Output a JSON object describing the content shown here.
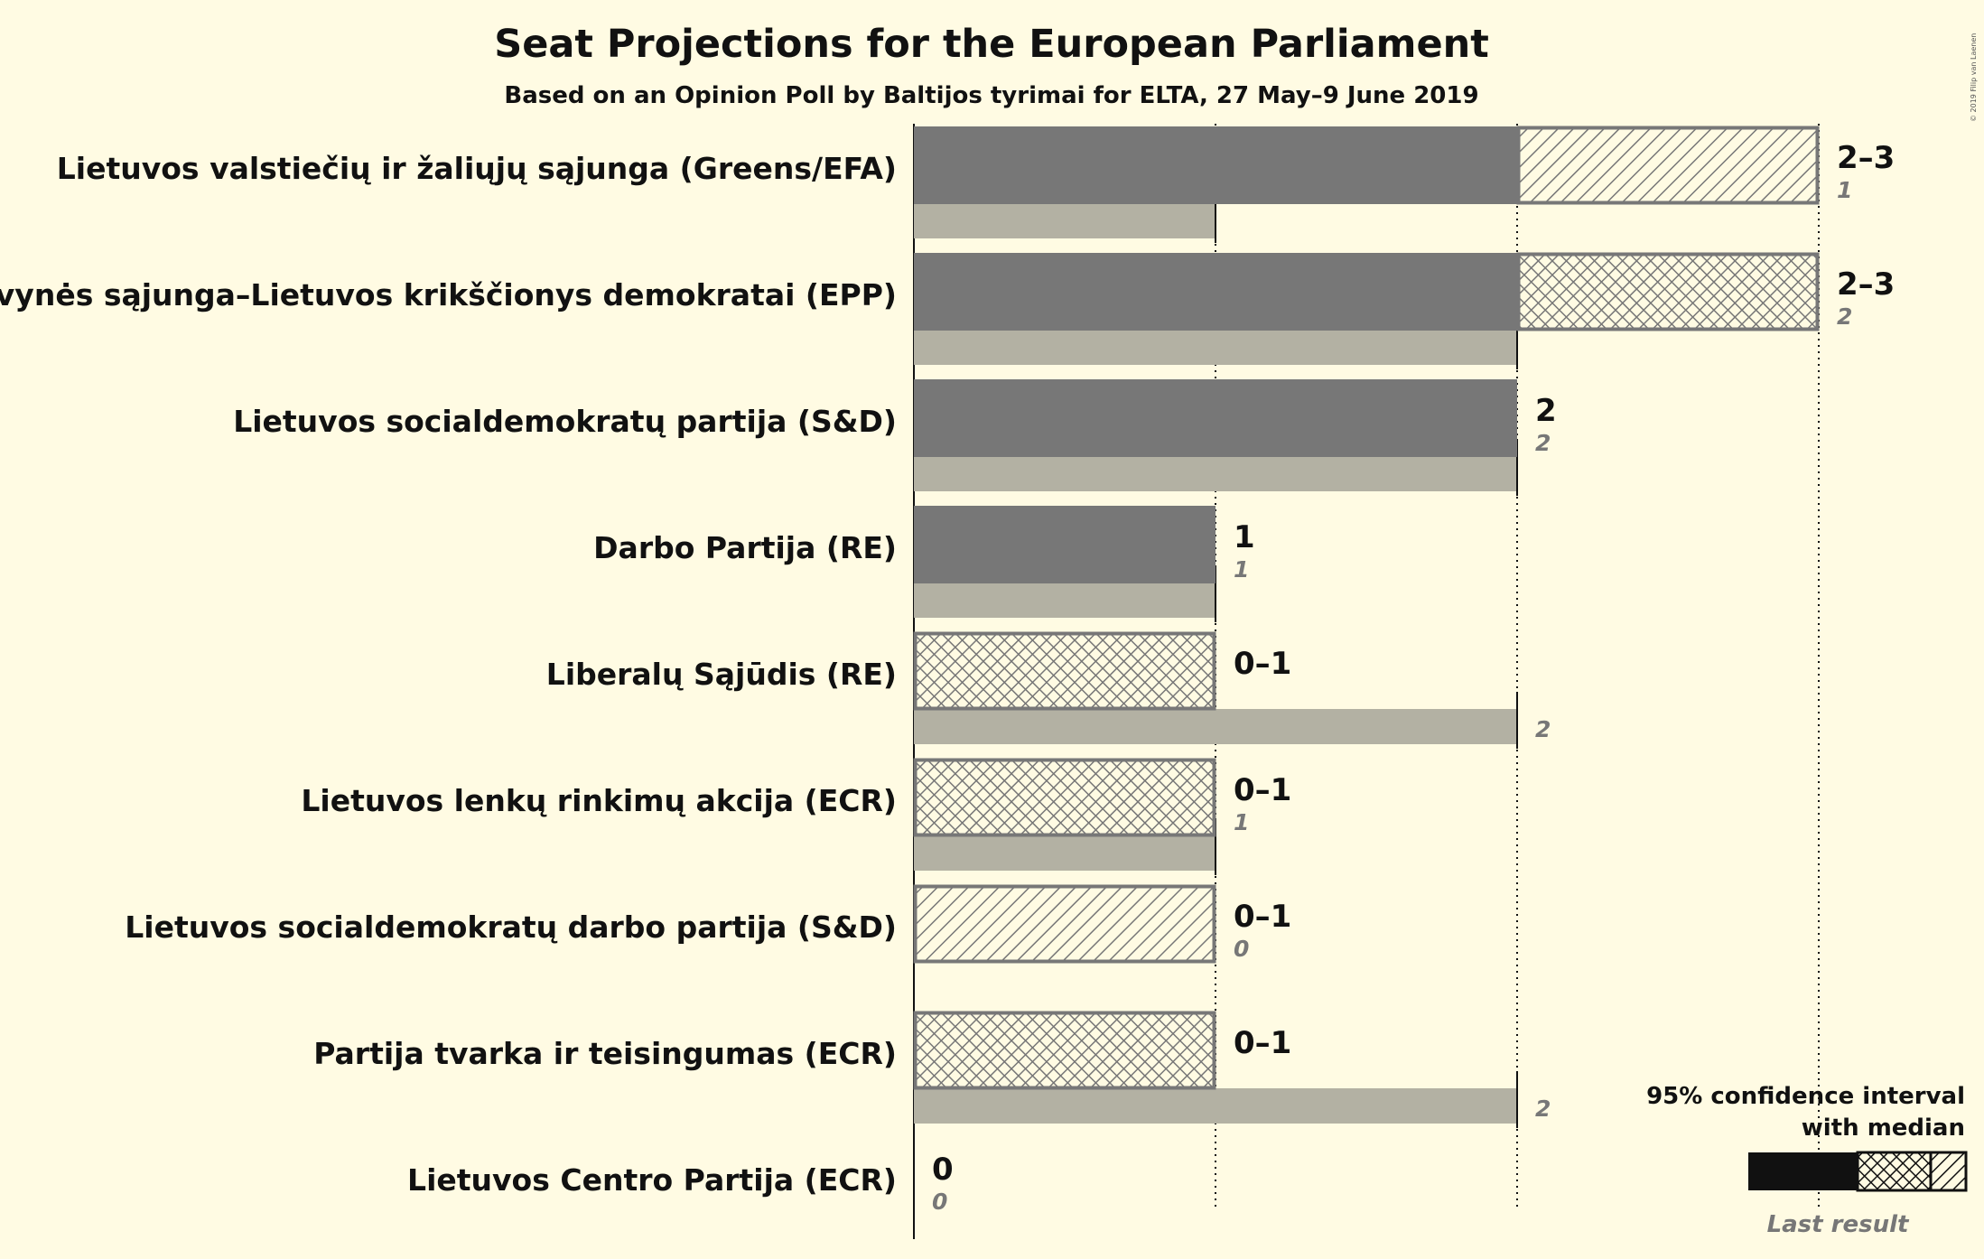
{
  "chart_data": {
    "type": "bar",
    "title": "Seat Projections for the European Parliament",
    "subtitle": "Based on an Opinion Poll by Baltijos tyrimai for ELTA, 27 May–9 June 2019",
    "copyright": "© 2019 Filip van Laenen",
    "xlim": [
      0,
      3
    ],
    "categories": [
      "Lietuvos valstiečių ir žaliųjų sąjunga (Greens/EFA)",
      "Tėvynės sąjunga–Lietuvos krikščionys demokratai (EPP)",
      "Lietuvos socialdemokratų partija (S&D)",
      "Darbo Partija (RE)",
      "Liberalų Sąjūdis (RE)",
      "Lietuvos lenkų rinkimų akcija (ECR)",
      "Lietuvos socialdemokratų darbo partija (S&D)",
      "Partija tvarka ir teisingumas (ECR)",
      "Lietuvos Centro Partija (ECR)"
    ],
    "series": [
      {
        "name": "95% confidence interval low",
        "values": [
          2,
          2,
          2,
          1,
          0,
          0,
          0,
          0,
          0
        ]
      },
      {
        "name": "95% confidence interval high",
        "values": [
          3,
          3,
          2,
          1,
          1,
          1,
          1,
          1,
          0
        ]
      },
      {
        "name": "Median",
        "values": [
          2,
          3,
          2,
          1,
          1,
          1,
          0,
          1,
          0
        ]
      },
      {
        "name": "Last result",
        "values": [
          1,
          2,
          2,
          1,
          2,
          1,
          0,
          2,
          0
        ]
      }
    ],
    "range_labels": [
      "2–3",
      "2–3",
      "2",
      "1",
      "0–1",
      "0–1",
      "0–1",
      "0–1",
      "0"
    ],
    "last_labels": [
      "1",
      "2",
      "2",
      "1",
      "2",
      "1",
      "0",
      "2",
      "0"
    ],
    "legend": {
      "line1": "95% confidence interval",
      "line2": "with median",
      "last": "Last result",
      "position": "bottom-right"
    },
    "colors": {
      "background": "#fffbe3",
      "bar": "#777777",
      "last": "#b3b1a3",
      "hatch": "#777777",
      "legend_bar": "#111111"
    }
  }
}
